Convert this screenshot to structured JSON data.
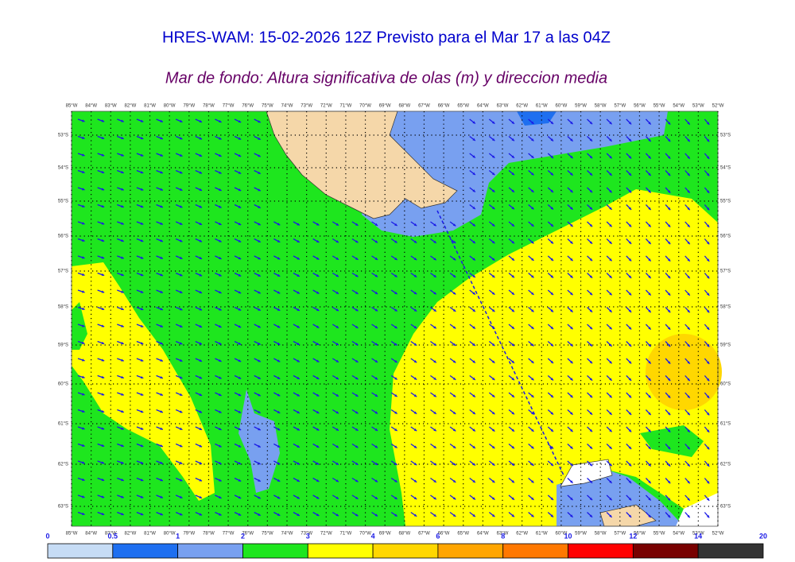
{
  "header": {
    "title": "HRES-WAM: 15-02-2026 12Z Previsto para el Mar 17 a las 04Z",
    "subtitle": "Mar de fondo: Altura significativa de olas (m) y direccion media"
  },
  "map": {
    "longitudes": [
      "85°W",
      "84°W",
      "83°W",
      "82°W",
      "81°W",
      "80°W",
      "79°W",
      "78°W",
      "77°W",
      "76°W",
      "75°W",
      "74°W",
      "73°W",
      "72°W",
      "71°W",
      "70°W",
      "69°W",
      "68°W",
      "67°W",
      "66°W",
      "65°W",
      "64°W",
      "63°W",
      "62°W",
      "61°W",
      "60°W",
      "59°W",
      "58°W",
      "57°W",
      "56°W",
      "55°W",
      "54°W",
      "53°W",
      "52°W"
    ],
    "latitudes": [
      "53°S",
      "54°S",
      "55°S",
      "56°S",
      "57°S",
      "58°S",
      "59°S",
      "60°S",
      "61°S",
      "62°S",
      "63°S"
    ]
  },
  "colorbar": {
    "levels": [
      0,
      0.5,
      1,
      2,
      3,
      4,
      6,
      8,
      10,
      12,
      14,
      20
    ],
    "colors": [
      "#c6dcf5",
      "#1e6ff0",
      "#78a0f0",
      "#1ee61e",
      "#ffff00",
      "#ffd700",
      "#ffa500",
      "#ff7800",
      "#ff0000",
      "#780000",
      "#333333"
    ]
  }
}
